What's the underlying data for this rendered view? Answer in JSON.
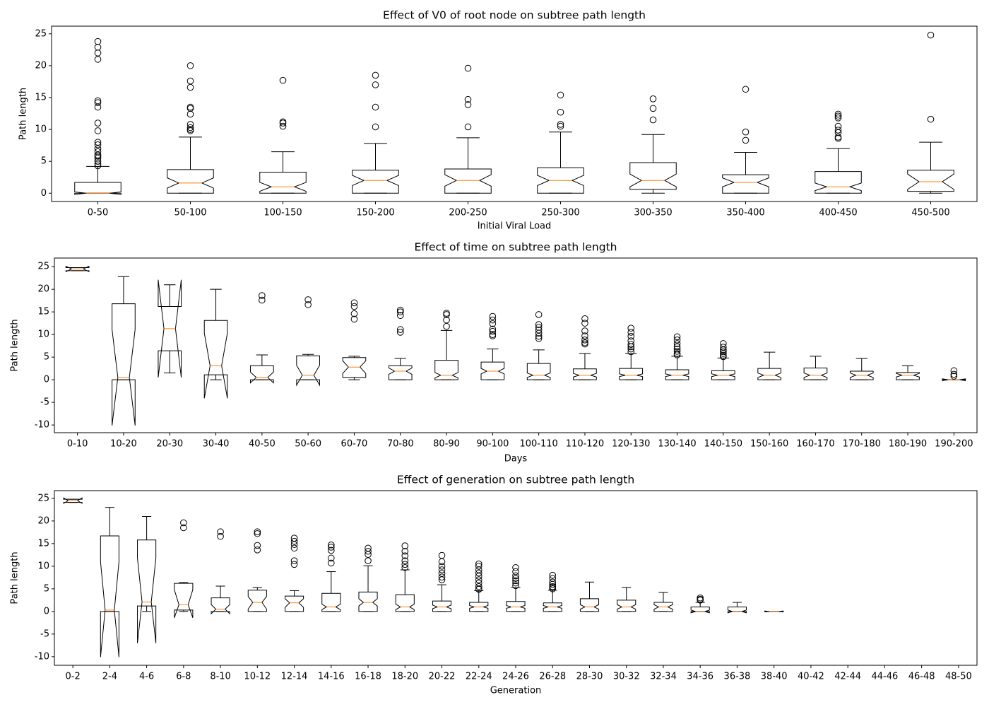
{
  "chart_data": [
    {
      "type": "box",
      "title": "Effect of V0 of root node on subtree path length",
      "xlabel": "Initial Viral Load",
      "ylabel": "Path length",
      "box_color": "#000000",
      "median_color": "#ff7f0e",
      "flier_color": "#000000",
      "ylim": [
        -1.3,
        26.2
      ],
      "yticks": [
        0,
        5,
        10,
        15,
        20,
        25
      ],
      "categories": [
        "0-50",
        "50-100",
        "100-150",
        "150-200",
        "200-250",
        "250-300",
        "300-350",
        "350-400",
        "400-450",
        "450-500"
      ],
      "boxes": [
        {
          "whislo": 0,
          "q1": 0,
          "med": 0,
          "notch_lo": -0.2,
          "notch_hi": 0.2,
          "q3": 1.7,
          "whishi": 4.2,
          "fliers": [
            23.8,
            22.9,
            22,
            21,
            14.5,
            14.2,
            13.5,
            11,
            9.8,
            8,
            7.6,
            7,
            6.5,
            6,
            5.8,
            5.5,
            5,
            4.6,
            4.3
          ]
        },
        {
          "whislo": 0,
          "q1": 0,
          "med": 1.6,
          "notch_lo": 0.8,
          "notch_hi": 2.4,
          "q3": 3.7,
          "whishi": 8.8,
          "fliers": [
            20,
            17.6,
            16.6,
            13.5,
            13.3,
            12.4,
            10.8,
            10.3,
            10,
            9.8
          ]
        },
        {
          "whislo": 0,
          "q1": 0,
          "med": 1,
          "notch_lo": 0.3,
          "notch_hi": 1.7,
          "q3": 3.3,
          "whishi": 6.5,
          "fliers": [
            17.7,
            11.2,
            11,
            10.5
          ]
        },
        {
          "whislo": 0,
          "q1": 0,
          "med": 2,
          "notch_lo": 1.2,
          "notch_hi": 2.8,
          "q3": 3.6,
          "whishi": 7.8,
          "fliers": [
            18.5,
            17,
            13.5,
            10.4
          ]
        },
        {
          "whislo": 0,
          "q1": 0,
          "med": 2,
          "notch_lo": 1.1,
          "notch_hi": 2.9,
          "q3": 3.8,
          "whishi": 8.7,
          "fliers": [
            19.6,
            14.7,
            13.9,
            10.4
          ]
        },
        {
          "whislo": 0,
          "q1": 0,
          "med": 2,
          "notch_lo": 1.2,
          "notch_hi": 2.8,
          "q3": 4,
          "whishi": 9.6,
          "fliers": [
            15.4,
            12.7,
            10.8,
            10.5
          ]
        },
        {
          "whislo": 0,
          "q1": 0.6,
          "med": 2,
          "notch_lo": 1,
          "notch_hi": 3,
          "q3": 4.8,
          "whishi": 9.2,
          "fliers": [
            14.8,
            13.3,
            11.5
          ]
        },
        {
          "whislo": 0,
          "q1": 0,
          "med": 1.7,
          "notch_lo": 1,
          "notch_hi": 2.4,
          "q3": 2.9,
          "whishi": 6.4,
          "fliers": [
            16.3,
            9.6,
            8.3
          ]
        },
        {
          "whislo": 0,
          "q1": 0,
          "med": 1,
          "notch_lo": 0.4,
          "notch_hi": 1.6,
          "q3": 3.4,
          "whishi": 7,
          "fliers": [
            12.4,
            12.1,
            11.8,
            10.5,
            9.9,
            9.5,
            8.8,
            8.6
          ]
        },
        {
          "whislo": 0,
          "q1": 0.3,
          "med": 1.8,
          "notch_lo": 0.6,
          "notch_hi": 3,
          "q3": 3.6,
          "whishi": 8,
          "fliers": [
            24.8,
            11.6
          ]
        }
      ]
    },
    {
      "type": "box",
      "title": "Effect of time on subtree path length",
      "xlabel": "Days",
      "ylabel": "Path length",
      "box_color": "#000000",
      "median_color": "#ff7f0e",
      "flier_color": "#000000",
      "ylim": [
        -11.7,
        26.9
      ],
      "yticks": [
        -10,
        -5,
        0,
        5,
        10,
        15,
        20,
        25
      ],
      "categories": [
        "0-10",
        "10-20",
        "20-30",
        "30-40",
        "40-50",
        "50-60",
        "60-70",
        "70-80",
        "80-90",
        "90-100",
        "100-110",
        "110-120",
        "120-130",
        "130-140",
        "140-150",
        "150-160",
        "160-170",
        "170-180",
        "180-190",
        "190-200"
      ],
      "boxes": [
        {
          "whislo": 24.1,
          "q1": 24.1,
          "med": 24.5,
          "notch_lo": 23.9,
          "notch_hi": 25.1,
          "q3": 24.8,
          "whishi": 24.8,
          "fliers": []
        },
        {
          "whislo": 0,
          "q1": 0,
          "med": 0.5,
          "notch_lo": -10.1,
          "notch_hi": 11.1,
          "q3": 16.8,
          "whishi": 22.8,
          "fliers": []
        },
        {
          "whislo": 1.5,
          "q1": 6.4,
          "med": 11.3,
          "notch_lo": 0.5,
          "notch_hi": 22.1,
          "q3": 16.2,
          "whishi": 21,
          "fliers": []
        },
        {
          "whislo": 0,
          "q1": 1.1,
          "med": 3.1,
          "notch_lo": -4.1,
          "notch_hi": 10.3,
          "q3": 13.1,
          "whishi": 20,
          "fliers": []
        },
        {
          "whislo": 0,
          "q1": 0,
          "med": 0.5,
          "notch_lo": -0.7,
          "notch_hi": 1.7,
          "q3": 3.1,
          "whishi": 5.5,
          "fliers": [
            18.6,
            17.6
          ]
        },
        {
          "whislo": 0,
          "q1": 0,
          "med": 1,
          "notch_lo": -1.2,
          "notch_hi": 3.2,
          "q3": 5.3,
          "whishi": 5.6,
          "fliers": [
            17.7,
            16.6
          ]
        },
        {
          "whislo": 0,
          "q1": 0.5,
          "med": 2.8,
          "notch_lo": 1.4,
          "notch_hi": 4.2,
          "q3": 4.9,
          "whishi": 5.2,
          "fliers": [
            17,
            16.2,
            14.6,
            13.4
          ]
        },
        {
          "whislo": 0,
          "q1": 0,
          "med": 1.9,
          "notch_lo": 1.2,
          "notch_hi": 2.6,
          "q3": 3.1,
          "whishi": 4.7,
          "fliers": [
            15.4,
            15,
            14.2,
            11.1,
            10.5
          ]
        },
        {
          "whislo": 0,
          "q1": 0,
          "med": 1,
          "notch_lo": 0.4,
          "notch_hi": 1.6,
          "q3": 4.3,
          "whishi": 10.9,
          "fliers": [
            14.7,
            14.4,
            13.2,
            11.8
          ]
        },
        {
          "whislo": 0,
          "q1": 0,
          "med": 1.9,
          "notch_lo": 1.3,
          "notch_hi": 2.5,
          "q3": 3.9,
          "whishi": 6.8,
          "fliers": [
            14,
            13.2,
            12.4,
            11.2,
            10.7,
            10,
            9.7
          ]
        },
        {
          "whislo": 0,
          "q1": 0,
          "med": 1,
          "notch_lo": 0.5,
          "notch_hi": 1.5,
          "q3": 3.6,
          "whishi": 6.6,
          "fliers": [
            14.4,
            12.2,
            11.6,
            11,
            10.3,
            9.6,
            9.1
          ]
        },
        {
          "whislo": 0,
          "q1": 0,
          "med": 1,
          "notch_lo": 0.6,
          "notch_hi": 1.4,
          "q3": 2.4,
          "whishi": 5.8,
          "fliers": [
            13.5,
            12.5,
            10.8,
            9.7,
            8.8,
            8.2,
            7.9
          ]
        },
        {
          "whislo": 0,
          "q1": 0,
          "med": 1,
          "notch_lo": 0.7,
          "notch_hi": 1.3,
          "q3": 2.5,
          "whishi": 5.8,
          "fliers": [
            11.4,
            10.5,
            9.6,
            8.6,
            7.8,
            7.3,
            6.8,
            6.2
          ]
        },
        {
          "whislo": 0,
          "q1": 0,
          "med": 1,
          "notch_lo": 0.7,
          "notch_hi": 1.3,
          "q3": 2.2,
          "whishi": 5.2,
          "fliers": [
            9.5,
            8.8,
            8,
            7.3,
            6.8,
            6.3,
            5.8,
            5.5
          ]
        },
        {
          "whislo": 0,
          "q1": 0,
          "med": 1,
          "notch_lo": 0.7,
          "notch_hi": 1.3,
          "q3": 2,
          "whishi": 4.8,
          "fliers": [
            8,
            7.2,
            6.6,
            6.2,
            5.8,
            5.4,
            5.1
          ]
        },
        {
          "whislo": 0,
          "q1": 0,
          "med": 1,
          "notch_lo": 0.5,
          "notch_hi": 1.5,
          "q3": 2.5,
          "whishi": 6.1,
          "fliers": []
        },
        {
          "whislo": 0,
          "q1": 0,
          "med": 1,
          "notch_lo": 0.5,
          "notch_hi": 1.5,
          "q3": 2.6,
          "whishi": 5.2,
          "fliers": []
        },
        {
          "whislo": 0,
          "q1": 0,
          "med": 1,
          "notch_lo": 0.5,
          "notch_hi": 1.5,
          "q3": 1.9,
          "whishi": 4.7,
          "fliers": []
        },
        {
          "whislo": 0,
          "q1": 0,
          "med": 1,
          "notch_lo": 0.6,
          "notch_hi": 1.4,
          "q3": 1.6,
          "whishi": 3.1,
          "fliers": []
        },
        {
          "whislo": 0,
          "q1": 0,
          "med": 0,
          "notch_lo": -0.2,
          "notch_hi": 0.2,
          "q3": 0,
          "whishi": 0,
          "fliers": [
            2,
            1.2,
            0.8
          ]
        }
      ]
    },
    {
      "type": "box",
      "title": "Effect of generation on subtree path length",
      "xlabel": "Generation",
      "ylabel": "Path length",
      "box_color": "#000000",
      "median_color": "#ff7f0e",
      "flier_color": "#000000",
      "ylim": [
        -11.9,
        26.7
      ],
      "yticks": [
        -10,
        -5,
        0,
        5,
        10,
        15,
        20,
        25
      ],
      "categories": [
        "0-2",
        "2-4",
        "4-6",
        "6-8",
        "8-10",
        "10-12",
        "12-14",
        "14-16",
        "16-18",
        "18-20",
        "20-22",
        "22-24",
        "24-26",
        "26-28",
        "28-30",
        "30-32",
        "32-34",
        "34-36",
        "36-38",
        "38-40",
        "40-42",
        "42-44",
        "44-46",
        "46-48",
        "48-50"
      ],
      "boxes": [
        {
          "whislo": 24.1,
          "q1": 24.1,
          "med": 24.5,
          "notch_lo": 23.9,
          "notch_hi": 25.1,
          "q3": 24.8,
          "whishi": 24.8,
          "fliers": []
        },
        {
          "whislo": 0,
          "q1": 0,
          "med": 0.3,
          "notch_lo": -10.1,
          "notch_hi": 11,
          "q3": 16.7,
          "whishi": 23,
          "fliers": []
        },
        {
          "whislo": 0,
          "q1": 1.2,
          "med": 2.1,
          "notch_lo": -7,
          "notch_hi": 11.8,
          "q3": 15.8,
          "whishi": 21,
          "fliers": []
        },
        {
          "whislo": 0,
          "q1": 0.3,
          "med": 1.5,
          "notch_lo": -1.4,
          "notch_hi": 4.8,
          "q3": 6.2,
          "whishi": 6.4,
          "fliers": [
            19.6,
            18.5
          ]
        },
        {
          "whislo": 0,
          "q1": 0,
          "med": 0.5,
          "notch_lo": -0.5,
          "notch_hi": 1.5,
          "q3": 3,
          "whishi": 5.6,
          "fliers": [
            17.6,
            16.6
          ]
        },
        {
          "whislo": 0,
          "q1": 0,
          "med": 2,
          "notch_lo": 0.5,
          "notch_hi": 3.3,
          "q3": 4.7,
          "whishi": 5.3,
          "fliers": [
            17.6,
            17.2,
            14.6,
            13.6
          ]
        },
        {
          "whislo": 0,
          "q1": 0,
          "med": 1.9,
          "notch_lo": 0.9,
          "notch_hi": 2.8,
          "q3": 3.4,
          "whishi": 4.6,
          "fliers": [
            16.2,
            15.5,
            14.8,
            14,
            11.2,
            10.4
          ]
        },
        {
          "whislo": 0,
          "q1": 0,
          "med": 1,
          "notch_lo": 0.4,
          "notch_hi": 1.6,
          "q3": 4,
          "whishi": 8.8,
          "fliers": [
            14.7,
            14.2,
            13.5,
            11.8,
            10.7
          ]
        },
        {
          "whislo": 0,
          "q1": 0,
          "med": 2,
          "notch_lo": 1.2,
          "notch_hi": 2.8,
          "q3": 4.3,
          "whishi": 10.1,
          "fliers": [
            14,
            13.3,
            12.6,
            11.2
          ]
        },
        {
          "whislo": 0,
          "q1": 0,
          "med": 1,
          "notch_lo": 0.4,
          "notch_hi": 1.6,
          "q3": 3.7,
          "whishi": 9.2,
          "fliers": [
            14.5,
            13.3,
            12.3,
            11.2,
            10.4,
            9.7
          ]
        },
        {
          "whislo": 0,
          "q1": 0,
          "med": 1,
          "notch_lo": 0.6,
          "notch_hi": 1.4,
          "q3": 2.3,
          "whishi": 5.9,
          "fliers": [
            12.4,
            11,
            10,
            9.2,
            8.4,
            7.6,
            7
          ]
        },
        {
          "whislo": 0,
          "q1": 0,
          "med": 1,
          "notch_lo": 0.7,
          "notch_hi": 1.3,
          "q3": 2,
          "whishi": 4.6,
          "fliers": [
            10.5,
            10,
            9.2,
            8.5,
            7.8,
            7,
            6.3,
            5.5,
            5,
            4.9
          ]
        },
        {
          "whislo": 0,
          "q1": 0,
          "med": 1,
          "notch_lo": 0.7,
          "notch_hi": 1.3,
          "q3": 2.2,
          "whishi": 5.3,
          "fliers": [
            9.7,
            8.8,
            7.9,
            7.3,
            6.8,
            6.3,
            5.7
          ]
        },
        {
          "whislo": 0,
          "q1": 0,
          "med": 1,
          "notch_lo": 0.7,
          "notch_hi": 1.3,
          "q3": 1.9,
          "whishi": 4.7,
          "fliers": [
            8,
            7.3,
            6.5,
            6,
            5.5,
            5.3,
            5
          ]
        },
        {
          "whislo": 0,
          "q1": 0,
          "med": 1,
          "notch_lo": 0.5,
          "notch_hi": 1.5,
          "q3": 2.8,
          "whishi": 6.5,
          "fliers": []
        },
        {
          "whislo": 0,
          "q1": 0,
          "med": 1,
          "notch_lo": 0.5,
          "notch_hi": 1.5,
          "q3": 2.5,
          "whishi": 5.3,
          "fliers": []
        },
        {
          "whislo": 0,
          "q1": 0,
          "med": 1,
          "notch_lo": 0.5,
          "notch_hi": 1.5,
          "q3": 2,
          "whishi": 4.2,
          "fliers": []
        },
        {
          "whislo": 0,
          "q1": 0,
          "med": 0,
          "notch_lo": -0.3,
          "notch_hi": 0.3,
          "q3": 1,
          "whishi": 2,
          "fliers": [
            3,
            2.7,
            2.5
          ]
        },
        {
          "whislo": 0,
          "q1": 0,
          "med": 0,
          "notch_lo": -0.3,
          "notch_hi": 0.3,
          "q3": 1,
          "whishi": 2,
          "fliers": []
        },
        {
          "whislo": 0,
          "q1": 0,
          "med": 0,
          "notch_lo": -0.1,
          "notch_hi": 0.1,
          "q3": 0,
          "whishi": 0,
          "fliers": []
        },
        null,
        null,
        null,
        null,
        null
      ]
    }
  ]
}
